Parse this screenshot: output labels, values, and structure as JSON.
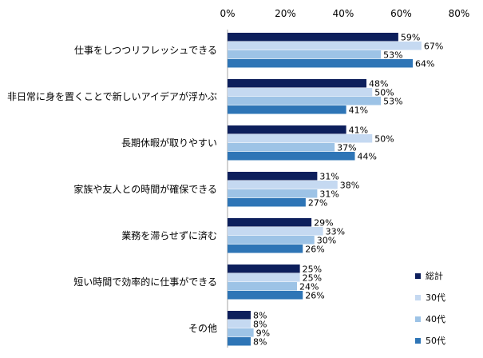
{
  "chart_data": {
    "type": "bar",
    "orientation": "horizontal",
    "title": "",
    "xlabel": "",
    "ylabel": "",
    "xlim": [
      0,
      80
    ],
    "xticks": [
      0,
      20,
      40,
      60,
      80
    ],
    "tick_suffix": "%",
    "grid": false,
    "legend_position": "bottom-right",
    "categories": [
      "仕事をしつつリフレッシュできる",
      "非日常に身を置くことで新しいアイデアが浮かぶ",
      "長期休暇が取りやすい",
      "家族や友人との時間が確保できる",
      "業務を滞らせずに済む",
      "短い時間で効率的に仕事ができる",
      "その他"
    ],
    "series": [
      {
        "name": "総計",
        "color": "#0d1f5c",
        "values": [
          59,
          48,
          41,
          31,
          29,
          25,
          8
        ]
      },
      {
        "name": "30代",
        "color": "#c5d9f1",
        "values": [
          67,
          50,
          50,
          38,
          33,
          25,
          8
        ]
      },
      {
        "name": "40代",
        "color": "#9dc3e6",
        "values": [
          53,
          53,
          37,
          31,
          30,
          24,
          9
        ]
      },
      {
        "name": "50代",
        "color": "#2e75b6",
        "values": [
          64,
          41,
          44,
          27,
          26,
          26,
          8
        ]
      }
    ]
  }
}
